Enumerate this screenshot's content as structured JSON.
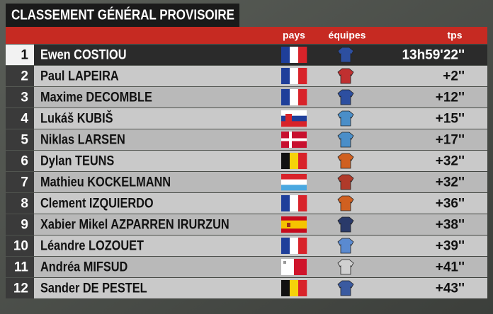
{
  "header": {
    "title": "CLASSEMENT GÉNÉRAL PROVISOIRE"
  },
  "columns": {
    "country": "pays",
    "team": "équipes",
    "time": "tps"
  },
  "table": {
    "rows": [
      [
        "1",
        "Ewen COSTIOU",
        "13h59'22''"
      ],
      [
        "2",
        "Paul LAPEIRA",
        "+2''"
      ],
      [
        "3",
        "Maxime DECOMBLE",
        "+12''"
      ],
      [
        "4",
        "Lukáš KUBIŠ",
        "+15''"
      ],
      [
        "5",
        "Niklas LARSEN",
        "+17''"
      ],
      [
        "6",
        "Dylan TEUNS",
        "+32''"
      ],
      [
        "7",
        "Mathieu KOCKELMANN",
        "+32''"
      ],
      [
        "8",
        "Clement IZQUIERDO",
        "+36''"
      ],
      [
        "9",
        "Xabier Mikel AZPARREN IRURZUN",
        "+38''"
      ],
      [
        "10",
        "Léandre LOZOUET",
        "+39''"
      ],
      [
        "11",
        "Andréa MIFSUD",
        "+41''"
      ],
      [
        "12",
        "Sander DE PESTEL",
        "+43''"
      ]
    ]
  }
}
